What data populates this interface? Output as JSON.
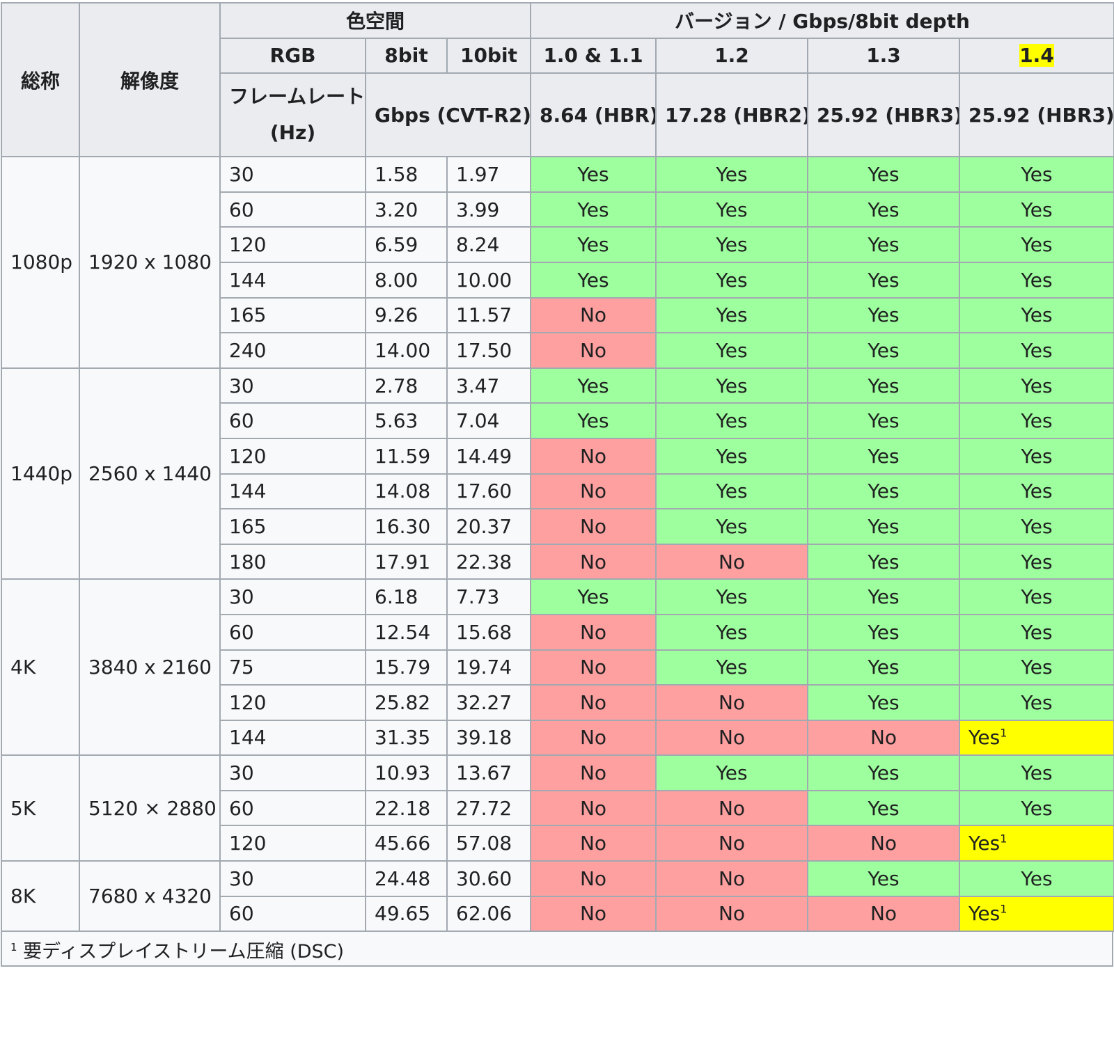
{
  "headers": {
    "name": "総称",
    "resolution": "解像度",
    "color_space": "色空間",
    "version_group": "バージョン / Gbps/8bit depth",
    "rgb": "RGB",
    "bit8": "8bit",
    "bit10": "10bit",
    "framerate_line1": "フレームレート",
    "framerate_line2": "(Hz)",
    "gbps": "Gbps (CVT-R2)",
    "versions": [
      {
        "label": "1.0 & 1.1",
        "bandwidth": "8.64 (HBR)"
      },
      {
        "label": "1.2",
        "bandwidth": "17.28 (HBR2)"
      },
      {
        "label": "1.3",
        "bandwidth": "25.92 (HBR3)"
      },
      {
        "label": "1.4",
        "bandwidth": "25.92 (HBR3)",
        "highlighted": true
      }
    ]
  },
  "labels": {
    "yes": "Yes",
    "no": "No",
    "footnote_mark": "1"
  },
  "groups": [
    {
      "name": "1080p",
      "resolution": "1920 x 1080",
      "rows": [
        {
          "hz": "30",
          "b8": "1.58",
          "b10": "1.97",
          "support": [
            "yes",
            "yes",
            "yes",
            "yes"
          ]
        },
        {
          "hz": "60",
          "b8": "3.20",
          "b10": "3.99",
          "support": [
            "yes",
            "yes",
            "yes",
            "yes"
          ]
        },
        {
          "hz": "120",
          "b8": "6.59",
          "b10": "8.24",
          "support": [
            "yes",
            "yes",
            "yes",
            "yes"
          ]
        },
        {
          "hz": "144",
          "b8": "8.00",
          "b10": "10.00",
          "support": [
            "yes",
            "yes",
            "yes",
            "yes"
          ]
        },
        {
          "hz": "165",
          "b8": "9.26",
          "b10": "11.57",
          "support": [
            "no",
            "yes",
            "yes",
            "yes"
          ]
        },
        {
          "hz": "240",
          "b8": "14.00",
          "b10": "17.50",
          "support": [
            "no",
            "yes",
            "yes",
            "yes"
          ]
        }
      ]
    },
    {
      "name": "1440p",
      "resolution": "2560 x 1440",
      "rows": [
        {
          "hz": "30",
          "b8": "2.78",
          "b10": "3.47",
          "support": [
            "yes",
            "yes",
            "yes",
            "yes"
          ]
        },
        {
          "hz": "60",
          "b8": "5.63",
          "b10": "7.04",
          "support": [
            "yes",
            "yes",
            "yes",
            "yes"
          ]
        },
        {
          "hz": "120",
          "b8": "11.59",
          "b10": "14.49",
          "support": [
            "no",
            "yes",
            "yes",
            "yes"
          ]
        },
        {
          "hz": "144",
          "b8": "14.08",
          "b10": "17.60",
          "support": [
            "no",
            "yes",
            "yes",
            "yes"
          ]
        },
        {
          "hz": "165",
          "b8": "16.30",
          "b10": "20.37",
          "support": [
            "no",
            "yes",
            "yes",
            "yes"
          ]
        },
        {
          "hz": "180",
          "b8": "17.91",
          "b10": "22.38",
          "support": [
            "no",
            "no",
            "yes",
            "yes"
          ]
        }
      ]
    },
    {
      "name": "4K",
      "resolution": "3840 x 2160",
      "rows": [
        {
          "hz": "30",
          "b8": "6.18",
          "b10": "7.73",
          "support": [
            "yes",
            "yes",
            "yes",
            "yes"
          ]
        },
        {
          "hz": "60",
          "b8": "12.54",
          "b10": "15.68",
          "support": [
            "no",
            "yes",
            "yes",
            "yes"
          ]
        },
        {
          "hz": "75",
          "b8": "15.79",
          "b10": "19.74",
          "support": [
            "no",
            "yes",
            "yes",
            "yes"
          ]
        },
        {
          "hz": "120",
          "b8": "25.82",
          "b10": "32.27",
          "support": [
            "no",
            "no",
            "yes",
            "yes"
          ]
        },
        {
          "hz": "144",
          "b8": "31.35",
          "b10": "39.18",
          "support": [
            "no",
            "no",
            "no",
            "dsc"
          ]
        }
      ]
    },
    {
      "name": "5K",
      "resolution": "5120 × 2880",
      "rows": [
        {
          "hz": "30",
          "b8": "10.93",
          "b10": "13.67",
          "support": [
            "no",
            "yes",
            "yes",
            "yes"
          ]
        },
        {
          "hz": "60",
          "b8": "22.18",
          "b10": "27.72",
          "support": [
            "no",
            "no",
            "yes",
            "yes"
          ]
        },
        {
          "hz": "120",
          "b8": "45.66",
          "b10": "57.08",
          "support": [
            "no",
            "no",
            "no",
            "dsc"
          ]
        }
      ]
    },
    {
      "name": "8K",
      "resolution": "7680 x 4320",
      "rows": [
        {
          "hz": "30",
          "b8": "24.48",
          "b10": "30.60",
          "support": [
            "no",
            "no",
            "yes",
            "yes"
          ]
        },
        {
          "hz": "60",
          "b8": "49.65",
          "b10": "62.06",
          "support": [
            "no",
            "no",
            "no",
            "dsc"
          ]
        }
      ]
    }
  ],
  "footnote": {
    "mark": "1",
    "text": " 要ディスプレイストリーム圧縮 (DSC)"
  },
  "colors": {
    "yes": "#9eff9e",
    "no": "#ffa0a0",
    "dsc": "#ffff00",
    "header": "#eaecf0",
    "border": "#a2a9b1"
  }
}
